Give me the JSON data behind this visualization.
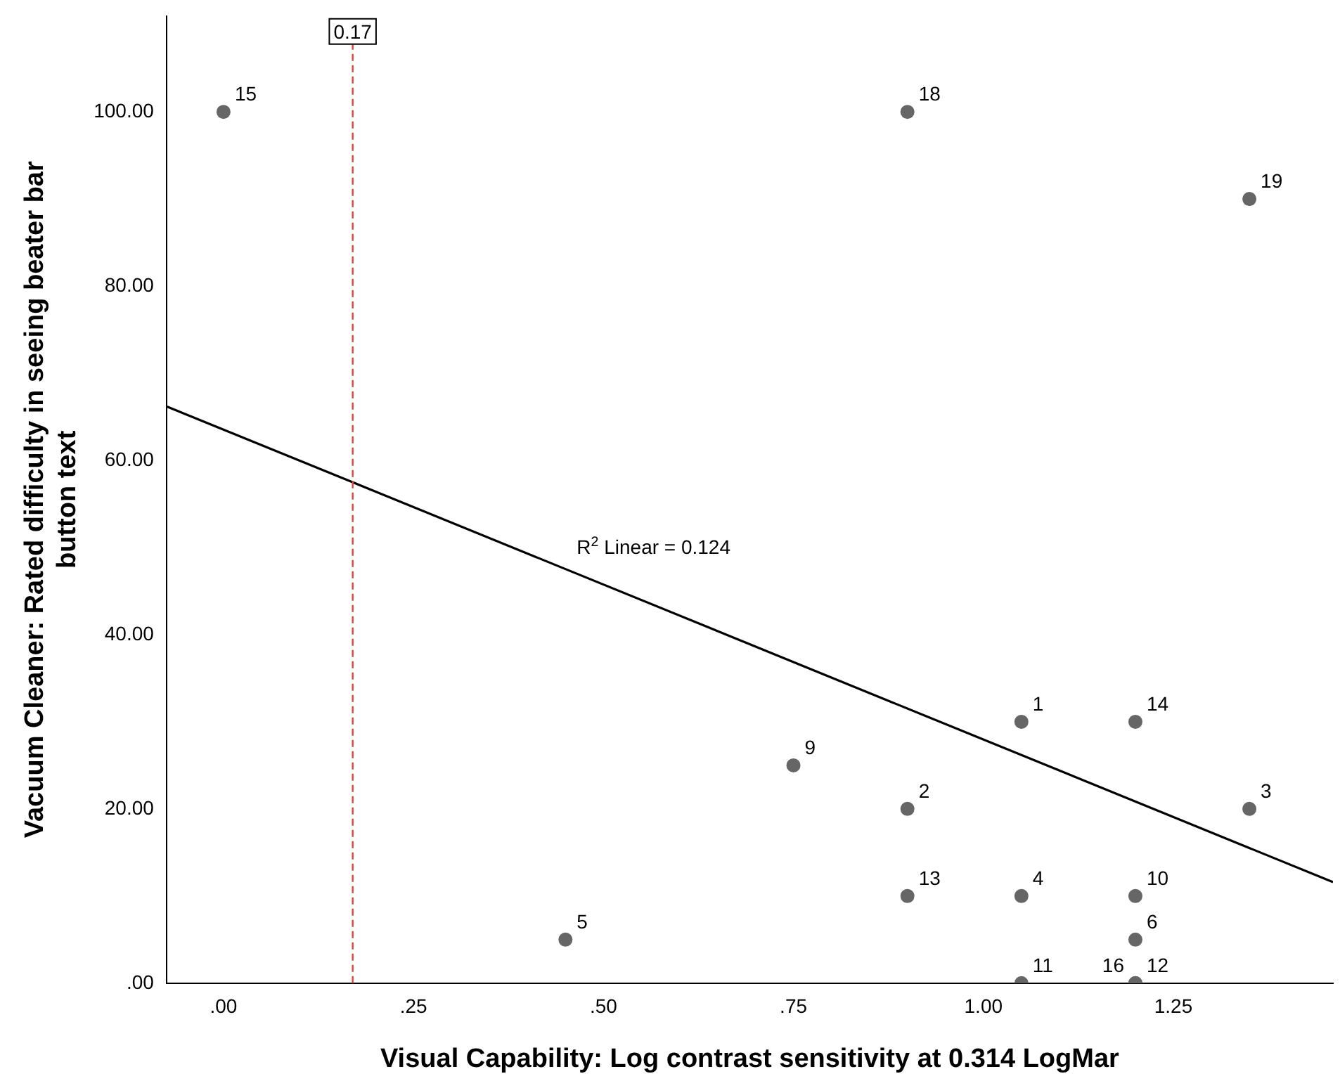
{
  "chart_data": {
    "type": "scatter",
    "xlabel": "Visual Capability: Log contrast sensitivity at 0.314 LogMar",
    "ylabel": "Vacuum Cleaner: Rated difficulty in seeing beater bar button text",
    "xlim": [
      -0.075,
      1.46
    ],
    "ylim": [
      0,
      111
    ],
    "xticks": [
      {
        "value": 0,
        "label": ".00"
      },
      {
        "value": 0.25,
        "label": ".25"
      },
      {
        "value": 0.5,
        "label": ".50"
      },
      {
        "value": 0.75,
        "label": ".75"
      },
      {
        "value": 1,
        "label": "1.00"
      },
      {
        "value": 1.25,
        "label": "1.25"
      }
    ],
    "yticks": [
      {
        "value": 0,
        "label": ".00"
      },
      {
        "value": 20,
        "label": "20.00"
      },
      {
        "value": 40,
        "label": "40.00"
      },
      {
        "value": 60,
        "label": "60.00"
      },
      {
        "value": 80,
        "label": "80.00"
      },
      {
        "value": 100,
        "label": "100.00"
      }
    ],
    "grid": false,
    "legend": false,
    "series": [
      {
        "marker": "circle",
        "color": "#666666",
        "x": [
          1.05,
          0.9,
          1.35,
          1.05,
          0.45,
          1.2,
          0.75,
          1.2,
          1.05,
          1.2,
          0.9,
          1.2,
          0,
          1.2,
          0.9,
          1.35
        ],
        "values": [
          30,
          20,
          20,
          10,
          5,
          5,
          25,
          10,
          0,
          0,
          10,
          30,
          100,
          0,
          100,
          90
        ]
      },
      {
        "type": "line",
        "marker": "none",
        "color": "#000000",
        "x": [
          -0.075,
          1.46
        ],
        "values": [
          66.2,
          11.6
        ]
      }
    ],
    "ref_lines": [
      {
        "axis": "x",
        "value": 0.17,
        "label": "0.17",
        "color": "#e8413c",
        "line_style": "dashed"
      }
    ],
    "annotations": [
      {
        "text": "1",
        "x": 1.05,
        "y": 30
      },
      {
        "text": "2",
        "x": 0.9,
        "y": 20
      },
      {
        "text": "3",
        "x": 1.35,
        "y": 20
      },
      {
        "text": "4",
        "x": 1.05,
        "y": 10
      },
      {
        "text": "5",
        "x": 0.45,
        "y": 5
      },
      {
        "text": "6",
        "x": 1.2,
        "y": 5
      },
      {
        "text": "9",
        "x": 0.75,
        "y": 25
      },
      {
        "text": "10",
        "x": 1.2,
        "y": 10
      },
      {
        "text": "11",
        "x": 1.05,
        "y": 0
      },
      {
        "text": "12",
        "x": 1.2,
        "y": 0
      },
      {
        "text": "13",
        "x": 0.9,
        "y": 10
      },
      {
        "text": "14",
        "x": 1.2,
        "y": 30
      },
      {
        "text": "15",
        "x": 0,
        "y": 100
      },
      {
        "text": "16",
        "x": 1.2,
        "y": 0
      },
      {
        "text": "18",
        "x": 0.9,
        "y": 100
      },
      {
        "text": "19",
        "x": 1.35,
        "y": 90
      },
      {
        "text": "R$^{2}$ Linear = 0.124",
        "x": 0.45,
        "y": 48
      }
    ]
  }
}
